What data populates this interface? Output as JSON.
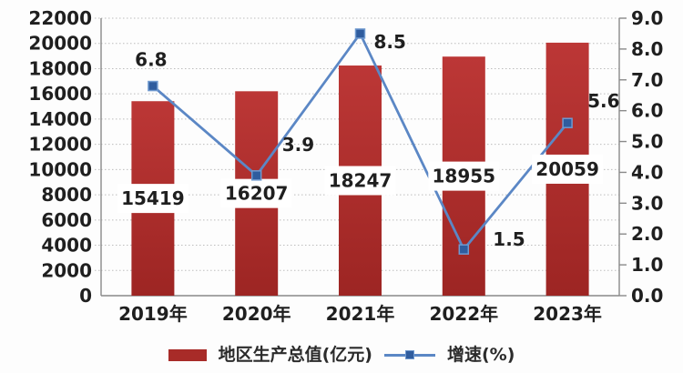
{
  "page": {
    "background": "#fdfdfd"
  },
  "chart_data": {
    "type": "bar+line",
    "title": "",
    "categories": [
      "2019年",
      "2020年",
      "2021年",
      "2022年",
      "2023年"
    ],
    "series": [
      {
        "name": "地区生产总值(亿元)",
        "type": "bar",
        "axis": "left",
        "values": [
          15419,
          16207,
          18247,
          18955,
          20059
        ],
        "bar_color_top": "#bc3736",
        "bar_color_bottom": "#9d2523",
        "legend_swatch_color": "#a82b28",
        "value_label_color": "#1f1f1f"
      },
      {
        "name": "增速(%)",
        "type": "line",
        "axis": "right",
        "values": [
          6.8,
          3.9,
          8.5,
          1.5,
          5.6
        ],
        "line_color": "#5b87c5",
        "marker_color": "#2f5c9e",
        "marker_edge_color": "#6f99cf",
        "label_offsets": [
          {
            "dx": -2,
            "dy": -22,
            "anchor": "middle"
          },
          {
            "dx": 28,
            "dy": -27,
            "anchor": "start"
          },
          {
            "dx": 15,
            "dy": 16,
            "anchor": "start"
          },
          {
            "dx": 32,
            "dy": -4,
            "anchor": "start"
          },
          {
            "dx": 22,
            "dy": -17,
            "anchor": "start"
          }
        ]
      }
    ],
    "left_axis": {
      "min": 0,
      "max": 22000,
      "step": 2000,
      "tick_labels": [
        "0",
        "2000",
        "4000",
        "6000",
        "8000",
        "10000",
        "12000",
        "14000",
        "16000",
        "18000",
        "20000",
        "22000"
      ]
    },
    "right_axis": {
      "min": 0,
      "max": 9,
      "step": 1,
      "tick_labels": [
        "0.0",
        "1.0",
        "2.0",
        "3.0",
        "4.0",
        "5.0",
        "6.0",
        "7.0",
        "8.0",
        "9.0"
      ]
    },
    "grid": {
      "horizontal": "dotted",
      "color": "#bdbdbd"
    },
    "axis_color": "#8a8a8a",
    "legend_position": "bottom-center"
  },
  "legend": {
    "bar_label": "地区生产总值(亿元)",
    "line_label": "增速(%)"
  }
}
